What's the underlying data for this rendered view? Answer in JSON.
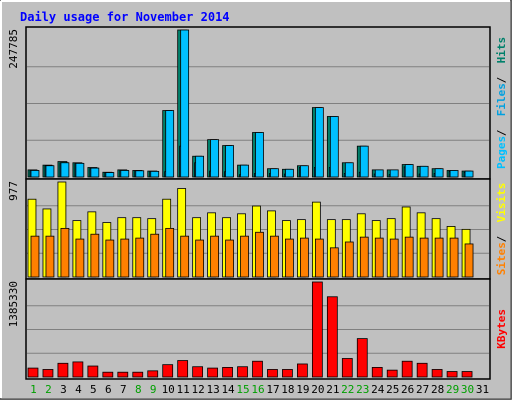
{
  "chart_data": {
    "type": "bar",
    "title": "Daily usage for November 2014",
    "x": [
      "1",
      "2",
      "3",
      "4",
      "5",
      "6",
      "7",
      "8",
      "9",
      "10",
      "11",
      "12",
      "13",
      "14",
      "15",
      "16",
      "17",
      "18",
      "19",
      "20",
      "21",
      "22",
      "23",
      "24",
      "25",
      "26",
      "27",
      "28",
      "29",
      "30",
      "31"
    ],
    "weekend_days": [
      "1",
      "2",
      "8",
      "9",
      "15",
      "16",
      "22",
      "23",
      "29",
      "30"
    ],
    "panels": [
      {
        "id": "hits-files-pages",
        "y_tick_label": "247785",
        "ylim": [
          0,
          247785
        ],
        "side_labels": [
          "Pages",
          "Files",
          "Hits"
        ],
        "series": [
          {
            "name": "Hits",
            "color": "#00806B",
            "values": [
              12000,
              20000,
              26000,
              24000,
              16000,
              8000,
              12000,
              11000,
              10000,
              112000,
              247785,
              35000,
              63000,
              53000,
              20000,
              75000,
              14000,
              13000,
              19000,
              117000,
              102000,
              24000,
              52000,
              12000,
              12000,
              21000,
              18000,
              14000,
              11000,
              10000,
              0
            ]
          },
          {
            "name": "Files",
            "color": "#00A0E0",
            "values": [
              11000,
              19000,
              24000,
              23000,
              15000,
              7500,
              11000,
              10500,
              9500,
              9000,
              52000,
              24000,
              10000,
              9000,
              4000,
              6000,
              6000,
              5000,
              16000,
              16000,
              16000,
              6000,
              8000,
              5000,
              4000,
              17000,
              5000,
              6000,
              9500,
              8000,
              0
            ]
          },
          {
            "name": "Pages",
            "color": "#00C0FF",
            "values": [
              11000,
              19000,
              24000,
              23000,
              15000,
              7500,
              11000,
              10500,
              9500,
              112000,
              247785,
              35000,
              63000,
              53000,
              20000,
              75000,
              14000,
              13000,
              19000,
              117000,
              102000,
              24000,
              52000,
              12000,
              12000,
              21000,
              18000,
              14000,
              11000,
              10000,
              0
            ]
          }
        ]
      },
      {
        "id": "visits-sites",
        "y_tick_label": "977",
        "ylim": [
          0,
          977
        ],
        "side_labels": [
          "Sites",
          "Visits"
        ],
        "series": [
          {
            "name": "Visits",
            "color": "#FFFF00",
            "values": [
              800,
              700,
              977,
              580,
              670,
              560,
              610,
              610,
              600,
              800,
              910,
              610,
              660,
              610,
              650,
              730,
              680,
              580,
              590,
              770,
              590,
              590,
              650,
              580,
              600,
              720,
              660,
              600,
              520,
              490,
              0
            ]
          },
          {
            "name": "Sites",
            "color": "#FF8000",
            "values": [
              420,
              420,
              500,
              390,
              440,
              380,
              390,
              400,
              440,
              500,
              420,
              380,
              420,
              380,
              420,
              460,
              420,
              390,
              400,
              390,
              300,
              360,
              410,
              400,
              390,
              410,
              400,
              400,
              400,
              340,
              0
            ]
          }
        ]
      },
      {
        "id": "kbytes",
        "y_tick_label": "1385330",
        "ylim": [
          0,
          1385330
        ],
        "side_labels": [
          "KBytes"
        ],
        "series": [
          {
            "name": "KBytes",
            "color": "#FF0000",
            "values": [
              130000,
              110000,
              200000,
              220000,
              160000,
              70000,
              70000,
              70000,
              90000,
              180000,
              240000,
              150000,
              130000,
              140000,
              150000,
              230000,
              110000,
              110000,
              190000,
              1385330,
              1170000,
              270000,
              560000,
              140000,
              100000,
              230000,
              200000,
              110000,
              80000,
              80000,
              0
            ]
          }
        ]
      }
    ],
    "colors": {
      "background": "#C0C0C0",
      "title": "#0000FF",
      "weekday_label": "#000000",
      "weekend_label": "#00A000",
      "frame": "#000000",
      "gridline": "#808080"
    }
  }
}
